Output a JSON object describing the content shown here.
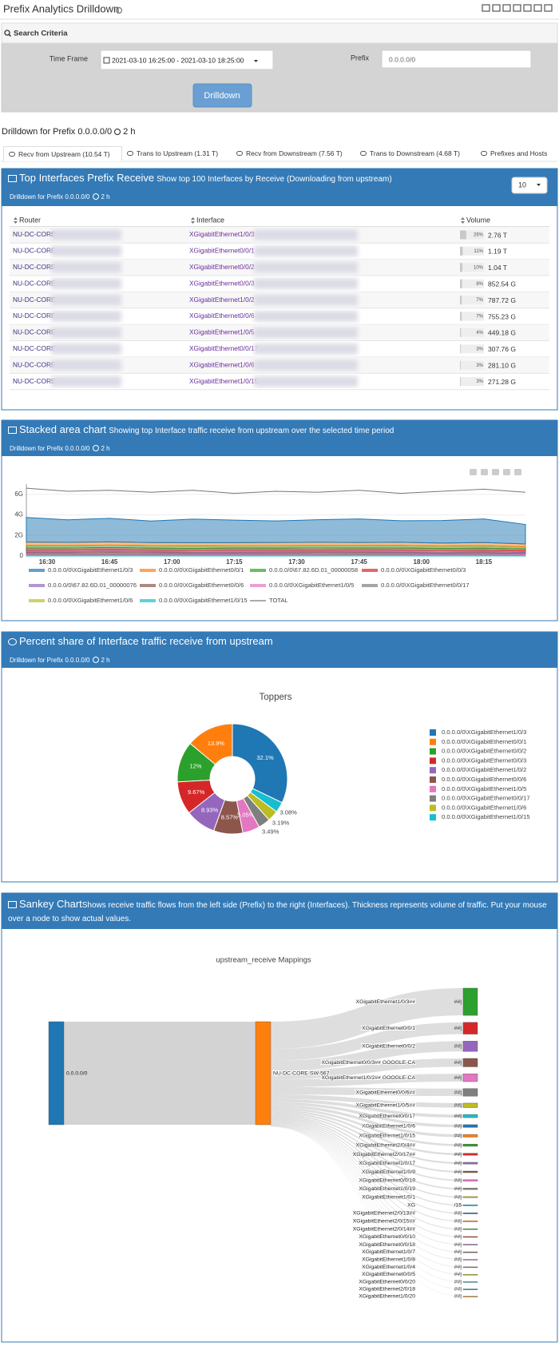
{
  "header": {
    "title": "Prefix Analytics Drilldown"
  },
  "search": {
    "title": "Search Criteria",
    "time_frame_label": "Time Frame",
    "time_frame": "2021-03-10 16:25:00 - 2021-03-10 18:25:00",
    "prefix_label": "Prefix",
    "prefix": "0.0.0.0/0",
    "button": "Drilldown"
  },
  "drilldown": {
    "title": "Drilldown for Prefix 0.0.0.0/0",
    "duration": "2 h"
  },
  "tabs": [
    "Recv from Upstream (10.54 T)",
    "Trans to Upstream (1.31 T)",
    "Recv from Downstream (7.56 T)",
    "Trans to Downstream (4.68 T)",
    "Prefixes and Hosts"
  ],
  "top_interfaces": {
    "title": "Top Interfaces Prefix Receive",
    "description": "Show top 100 Interfaces by Receive (Downloading from upstream)",
    "subtitle": "Drilldown for Prefix 0.0.0.0/0",
    "duration": "2 h",
    "page_size": "10",
    "columns": [
      "Router",
      "Interface",
      "Volume"
    ],
    "rows": [
      {
        "router": "NU-DC-CORE-",
        "interface": "XGigabitEthernet1/0/3",
        "share": 26,
        "share_label": "26%",
        "volume": "2.76 T"
      },
      {
        "router": "NU-DC-CORE-",
        "interface": "XGigabitEthernet0/0/1",
        "share": 11,
        "share_label": "11%",
        "volume": "1.19 T"
      },
      {
        "router": "NU-DC-CORE-",
        "interface": "XGigabitEthernet0/0/2",
        "share": 10,
        "share_label": "10%",
        "volume": "1.04 T"
      },
      {
        "router": "NU-DC-CORE-",
        "interface": "XGigabitEthernet0/0/3",
        "share": 8,
        "share_label": "8%",
        "volume": "852.54 G"
      },
      {
        "router": "NU-DC-CORE-",
        "interface": "XGigabitEthernet1/0/2",
        "share": 7,
        "share_label": "7%",
        "volume": "787.72 G"
      },
      {
        "router": "NU-DC-CORE-",
        "interface": "XGigabitEthernet0/0/6",
        "share": 7,
        "share_label": "7%",
        "volume": "755.23 G"
      },
      {
        "router": "NU-DC-CORE-",
        "interface": "XGigabitEthernet1/0/5",
        "share": 4,
        "share_label": "4%",
        "volume": "449.18 G"
      },
      {
        "router": "NU-DC-CORE-",
        "interface": "XGigabitEthernet0/0/17",
        "share": 3,
        "share_label": "3%",
        "volume": "307.76 G"
      },
      {
        "router": "NU-DC-CORE-",
        "interface": "XGigabitEthernet1/0/6",
        "share": 3,
        "share_label": "3%",
        "volume": "281.10 G"
      },
      {
        "router": "NU-DC-CORE-",
        "interface": "XGigabitEthernet1/0/15",
        "share": 3,
        "share_label": "3%",
        "volume": "271.28 G"
      }
    ]
  },
  "chart_data": [
    {
      "type": "area",
      "panel_title": "Stacked area chart",
      "description": "Showing top Interface traffic receive from upstream over the selected time period",
      "subtitle": "Drilldown for Prefix 0.0.0.0/0",
      "duration": "2 h",
      "stacked": true,
      "grid": true,
      "x": [
        "16:25",
        "16:35",
        "16:45",
        "16:55",
        "17:05",
        "17:15",
        "17:25",
        "17:35",
        "17:45",
        "17:55",
        "18:05",
        "18:15",
        "18:25"
      ],
      "xlim": [
        "16:25",
        "18:25"
      ],
      "xticks": [
        "16:30",
        "16:45",
        "17:00",
        "17:15",
        "17:30",
        "17:45",
        "18:00",
        "18:15"
      ],
      "ylim": [
        0,
        7
      ],
      "yticks": [
        0,
        {
          "value": 2,
          "label": "2G"
        },
        {
          "value": 4,
          "label": "4G"
        },
        {
          "value": 6,
          "label": "6G"
        }
      ],
      "series": [
        {
          "name": "0.0.0.0/0\\XGigabitEthernet1/0/3",
          "color": "#1f77b4",
          "values": [
            2.4,
            2.2,
            2.3,
            2.1,
            2.3,
            2.2,
            2.1,
            2.2,
            2.3,
            2.1,
            2.2,
            2.3,
            1.9
          ]
        },
        {
          "name": "0.0.0.0/0\\XGigabitEthernet0/0/1",
          "color": "#ff7f0e",
          "values": [
            0.32,
            0.3,
            0.31,
            0.29,
            0.3,
            0.28,
            0.3,
            0.31,
            0.29,
            0.3,
            0.28,
            0.3,
            0.27
          ]
        },
        {
          "name": "0.0.0.0/0\\67.82.6D.01_00000058",
          "color": "#2ca02c",
          "values": [
            0.26,
            0.25,
            0.24,
            0.25,
            0.26,
            0.24,
            0.25,
            0.24,
            0.25,
            0.26,
            0.24,
            0.25,
            0.23
          ]
        },
        {
          "name": "0.0.0.0/0\\XGigabitEthernet0/0/3",
          "color": "#d62728",
          "values": [
            0.21,
            0.2,
            0.22,
            0.2,
            0.19,
            0.21,
            0.2,
            0.22,
            0.2,
            0.21,
            0.19,
            0.2,
            0.18
          ]
        },
        {
          "name": "0.0.0.0/0\\67.82.6D.01_00000076",
          "color": "#9467bd",
          "values": [
            0.15,
            0.16,
            0.15,
            0.14,
            0.15,
            0.16,
            0.15,
            0.14,
            0.15,
            0.16,
            0.15,
            0.14,
            0.13
          ]
        },
        {
          "name": "0.0.0.0/0\\XGigabitEthernet0/0/6",
          "color": "#8c564b",
          "values": [
            0.12,
            0.12,
            0.13,
            0.12,
            0.11,
            0.12,
            0.13,
            0.12,
            0.12,
            0.11,
            0.12,
            0.13,
            0.11
          ]
        },
        {
          "name": "0.0.0.0/0\\XGigabitEthernet1/0/5",
          "color": "#e377c2",
          "values": [
            0.1,
            0.1,
            0.11,
            0.1,
            0.09,
            0.1,
            0.1,
            0.11,
            0.1,
            0.1,
            0.09,
            0.1,
            0.09
          ]
        },
        {
          "name": "0.0.0.0/0\\XGigabitEthernet0/0/17",
          "color": "#7f7f7f",
          "values": [
            0.08,
            0.08,
            0.09,
            0.08,
            0.08,
            0.07,
            0.08,
            0.09,
            0.08,
            0.08,
            0.07,
            0.08,
            0.07
          ]
        },
        {
          "name": "0.0.0.0/0\\XGigabitEthernet1/0/6",
          "color": "#bcbd22",
          "values": [
            0.06,
            0.06,
            0.07,
            0.06,
            0.06,
            0.06,
            0.05,
            0.06,
            0.07,
            0.06,
            0.06,
            0.06,
            0.05
          ]
        },
        {
          "name": "0.0.0.0/0\\XGigabitEthernet1/0/15",
          "color": "#17becf",
          "values": [
            0.05,
            0.05,
            0.05,
            0.06,
            0.05,
            0.05,
            0.05,
            0.04,
            0.05,
            0.05,
            0.05,
            0.05,
            0.04
          ]
        },
        {
          "name": "TOTAL",
          "color": "#777777",
          "mode": "line",
          "values": [
            6.6,
            6.3,
            6.4,
            6.2,
            6.4,
            6.1,
            6.3,
            6.2,
            6.4,
            6.1,
            6.3,
            6.5,
            6.2
          ]
        }
      ]
    },
    {
      "type": "pie",
      "panel_title": "Percent share of Interface traffic receive from upstream",
      "subtitle": "Drilldown for Prefix 0.0.0.0/0",
      "duration": "2 h",
      "title": "Toppers",
      "labels": [
        "0.0.0.0/0\\XGigabitEthernet1/0/3",
        "0.0.0.0/0\\XGigabitEthernet0/0/1",
        "0.0.0.0/0\\XGigabitEthernet0/0/2",
        "0.0.0.0/0\\XGigabitEthernet0/0/3",
        "0.0.0.0/0\\XGigabitEthernet1/0/2",
        "0.0.0.0/0\\XGigabitEthernet0/0/6",
        "0.0.0.0/0\\XGigabitEthernet1/0/5",
        "0.0.0.0/0\\XGigabitEthernet0/0/17",
        "0.0.0.0/0\\XGigabitEthernet1/0/6",
        "0.0.0.0/0\\XGigabitEthernet1/0/15"
      ],
      "values": [
        32.1,
        13.9,
        12,
        9.67,
        8.93,
        8.57,
        5.05,
        3.49,
        3.19,
        3.08
      ],
      "value_labels": [
        "32.1%",
        "13.9%",
        "12%",
        "9.67%",
        "8.93%",
        "8.57%",
        "5.05%",
        "3.49%",
        "3.19%",
        "3.08%"
      ],
      "colors": [
        "#1f77b4",
        "#ff7f0e",
        "#2ca02c",
        "#d62728",
        "#9467bd",
        "#8c564b",
        "#e377c2",
        "#7f7f7f",
        "#bcbd22",
        "#17becf"
      ]
    },
    {
      "type": "sankey",
      "panel_title": "Sankey Chart",
      "description": "Shows receive traffic flows from the left side (Prefix) to the right (Interfaces). Thickness represents volume of traffic. Put your mouse over a node to show actual values.",
      "title": "upstream_receive Mappings",
      "nodes": [
        "0.0.0.0/0",
        "NU-DC-CORE-SW-567",
        "XGigabitEthernet1/0/3##",
        "XGigabitEthernet0/0/1",
        "XGigabitEthernet0/0/2",
        "XGigabitEthernet0/0/3## GOOGLE-CA",
        "XGigabitEthernet1/0/2## GOOGLE-CA",
        "XGigabitEthernet0/0/6##",
        "XGigabitEthernet1/0/5##",
        "XGigabitEthernet0/0/17",
        "XGigabitEthernet1/0/6",
        "XGigabitEthernet1/0/15",
        "XGigabitEthernet2/0/4##",
        "XGigabitEthernet2/0/17##",
        "XGigabitEthernet1/0/17",
        "XGigabitEthernet1/0/9",
        "XGigabitEthernet0/0/19",
        "XGigabitEthernet1/0/19",
        "XGigabitEthernet1/0/1",
        "XG",
        "XGigabitEthernet2/0/13##",
        "XGigabitEthernet2/0/15##",
        "XGigabitEthernet2/0/14##",
        "XGigabitEthernet0/0/10",
        "XGigabitEthernet0/0/18",
        "XGigabitEthernet1/0/7",
        "XGigabitEthernet1/0/8",
        "XGigabitEthernet1/0/4",
        "XGigabitEthernet0/0/5",
        "XGigabitEthernet0/0/20",
        "XGigabitEthernet2/0/18",
        "XGigabitEthernet1/0/20"
      ],
      "node_notes": [
        "##|",
        "##|",
        "##|",
        "##|",
        "##|",
        "##|",
        "##|",
        "##|",
        "##|",
        "##|",
        "##|",
        "##|",
        "##|",
        "##|",
        "##|",
        "##|",
        "##|",
        "/15",
        "##|",
        "##|",
        "##|",
        "##|",
        "##|",
        "##|",
        "##|",
        "##|",
        "##|",
        "##|",
        "##|",
        "##|"
      ],
      "link_values": [
        10.44,
        2.76,
        1.19,
        1.04,
        0.85,
        0.79,
        0.76,
        0.45,
        0.31,
        0.28,
        0.27,
        0.22,
        0.2,
        0.18,
        0.16,
        0.15,
        0.14,
        0.12,
        0.11,
        0.1,
        0.09,
        0.08,
        0.07,
        0.06,
        0.05,
        0.05,
        0.04,
        0.04,
        0.03,
        0.03,
        0.02
      ],
      "palette": [
        "#1f77b4",
        "#ff7f0e",
        "#2ca02c",
        "#d62728",
        "#9467bd",
        "#8c564b",
        "#e377c2",
        "#7f7f7f",
        "#bcbd22",
        "#17becf"
      ]
    }
  ]
}
